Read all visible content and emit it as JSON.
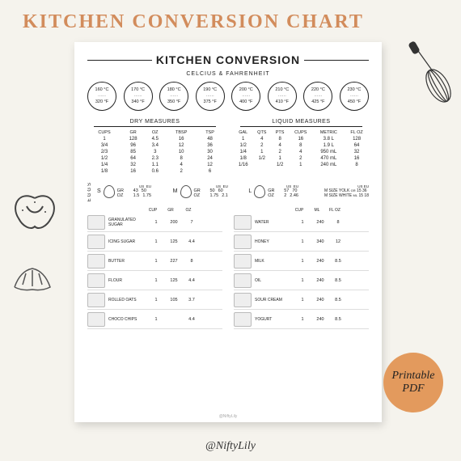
{
  "page_title": "KITCHEN CONVERSION CHART",
  "card_title": "KITCHEN CONVERSION",
  "temp_label": "CELCIUS & FAHRENHEIT",
  "temps": [
    {
      "c": "160 °C",
      "f": "320 °F"
    },
    {
      "c": "170 °C",
      "f": "340 °F"
    },
    {
      "c": "180 °C",
      "f": "350 °F"
    },
    {
      "c": "190 °C",
      "f": "375 °F"
    },
    {
      "c": "200 °C",
      "f": "400 °F"
    },
    {
      "c": "210 °C",
      "f": "410 °F"
    },
    {
      "c": "220 °C",
      "f": "425 °F"
    },
    {
      "c": "230 °C",
      "f": "450 °F"
    }
  ],
  "dry": {
    "title": "DRY MEASURES",
    "headers": [
      "CUPS",
      "GR",
      "OZ",
      "TBSP",
      "TSP"
    ],
    "rows": [
      [
        "1",
        "128",
        "4.5",
        "16",
        "48"
      ],
      [
        "3/4",
        "96",
        "3.4",
        "12",
        "36"
      ],
      [
        "2/3",
        "85",
        "3",
        "10",
        "30"
      ],
      [
        "1/2",
        "64",
        "2.3",
        "8",
        "24"
      ],
      [
        "1/4",
        "32",
        "1.1",
        "4",
        "12"
      ],
      [
        "1/8",
        "16",
        "0.6",
        "2",
        "6"
      ]
    ]
  },
  "liquid": {
    "title": "LIQUID MEASURES",
    "headers": [
      "GAL",
      "QTS",
      "PTS",
      "CUPS",
      "METRIC",
      "FL OZ"
    ],
    "rows": [
      [
        "1",
        "4",
        "8",
        "16",
        "3.8 L",
        "128"
      ],
      [
        "1/2",
        "2",
        "4",
        "8",
        "1.9 L",
        "64"
      ],
      [
        "1/4",
        "1",
        "2",
        "4",
        "950 mL",
        "32"
      ],
      [
        "1/8",
        "1/2",
        "1",
        "2",
        "470 mL",
        "16"
      ],
      [
        "1/16",
        "",
        "1/2",
        "1",
        "240 mL",
        "8"
      ]
    ]
  },
  "eggs_label": "EGGS",
  "egg_hdr": {
    "us": "US",
    "eu": "EU"
  },
  "eggs": [
    {
      "size": "S",
      "gr": "GR",
      "oz": "OZ",
      "us_gr": "43",
      "us_oz": "1.5",
      "eu_gr": "50",
      "eu_oz": "1.75"
    },
    {
      "size": "M",
      "gr": "GR",
      "oz": "OZ",
      "us_gr": "50",
      "us_oz": "1.75",
      "eu_gr": "60",
      "eu_oz": "2.1"
    },
    {
      "size": "L",
      "gr": "GR",
      "oz": "OZ",
      "us_gr": "57",
      "us_oz": "2",
      "eu_gr": "70",
      "eu_oz": "2.46"
    }
  ],
  "egg_extra": [
    {
      "label": "M SIZE YOLK",
      "us": "GR",
      "uv": "15",
      "eu": "ML",
      "ev": "30",
      "fl": "FL OZ",
      "fv": "36"
    },
    {
      "label": "M SIZE WHITE",
      "us": "ML",
      "uv": "15",
      "eu": "",
      "ev": "",
      "fl": "",
      "fv": "18"
    }
  ],
  "ing_left": {
    "headers": [
      "CUP",
      "GR",
      "OZ"
    ],
    "rows": [
      {
        "name": "GRANULATED SUGAR",
        "v": [
          "1",
          "200",
          "7"
        ]
      },
      {
        "name": "ICING SUGAR",
        "v": [
          "1",
          "125",
          "4.4"
        ]
      },
      {
        "name": "BUTTER",
        "v": [
          "1",
          "227",
          "8"
        ]
      },
      {
        "name": "FLOUR",
        "v": [
          "1",
          "125",
          "4.4"
        ]
      },
      {
        "name": "ROLLED OATS",
        "v": [
          "1",
          "105",
          "3.7"
        ]
      },
      {
        "name": "CHOCO CHIPS",
        "v": [
          "1",
          "",
          "4.4"
        ]
      }
    ]
  },
  "ing_right": {
    "headers": [
      "CUP",
      "ML",
      "FL OZ"
    ],
    "rows": [
      {
        "name": "WATER",
        "v": [
          "1",
          "240",
          "8"
        ]
      },
      {
        "name": "HONEY",
        "v": [
          "1",
          "340",
          "12"
        ]
      },
      {
        "name": "MILK",
        "v": [
          "1",
          "240",
          "8.5"
        ]
      },
      {
        "name": "OIL",
        "v": [
          "1",
          "240",
          "8.5"
        ]
      },
      {
        "name": "SOUR CREAM",
        "v": [
          "1",
          "240",
          "8.5"
        ]
      },
      {
        "name": "YOGURT",
        "v": [
          "1",
          "240",
          "8.5"
        ]
      }
    ]
  },
  "badge": {
    "l1": "Printable",
    "l2": "PDF"
  },
  "handle": "@NiftyLily",
  "watermark": "@NiftyLily",
  "colors": {
    "bg": "#f5f3ed",
    "accent": "#d28c5c",
    "badge": "#e39a5d"
  }
}
